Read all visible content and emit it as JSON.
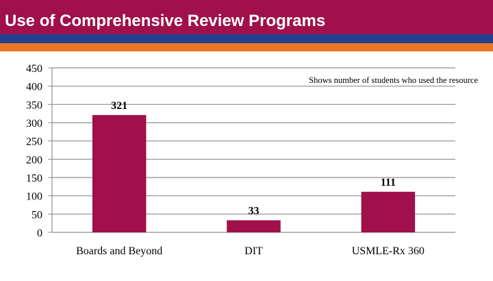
{
  "header": {
    "title": "Use of Comprehensive Review Programs"
  },
  "colors": {
    "header_bg": "#a0104a",
    "band_blue": "#233f8f",
    "band_orange": "#e87722",
    "bar_fill": "#a0104a"
  },
  "chart_data": {
    "type": "bar",
    "title": "",
    "xlabel": "",
    "ylabel": "",
    "annotation": "Shows number of students who used the resource",
    "categories": [
      "Boards and Beyond",
      "DIT",
      "USMLE-Rx 360"
    ],
    "values": [
      321,
      33,
      111
    ],
    "data_labels": [
      "321",
      "33",
      "111"
    ],
    "ylim": [
      0,
      450
    ],
    "yticks": [
      0,
      50,
      100,
      150,
      200,
      250,
      300,
      350,
      400,
      450
    ],
    "ytick_labels": [
      "0",
      "50",
      "100",
      "150",
      "200",
      "250",
      "300",
      "350",
      "400",
      "450"
    ],
    "grid": true,
    "legend": "none"
  }
}
